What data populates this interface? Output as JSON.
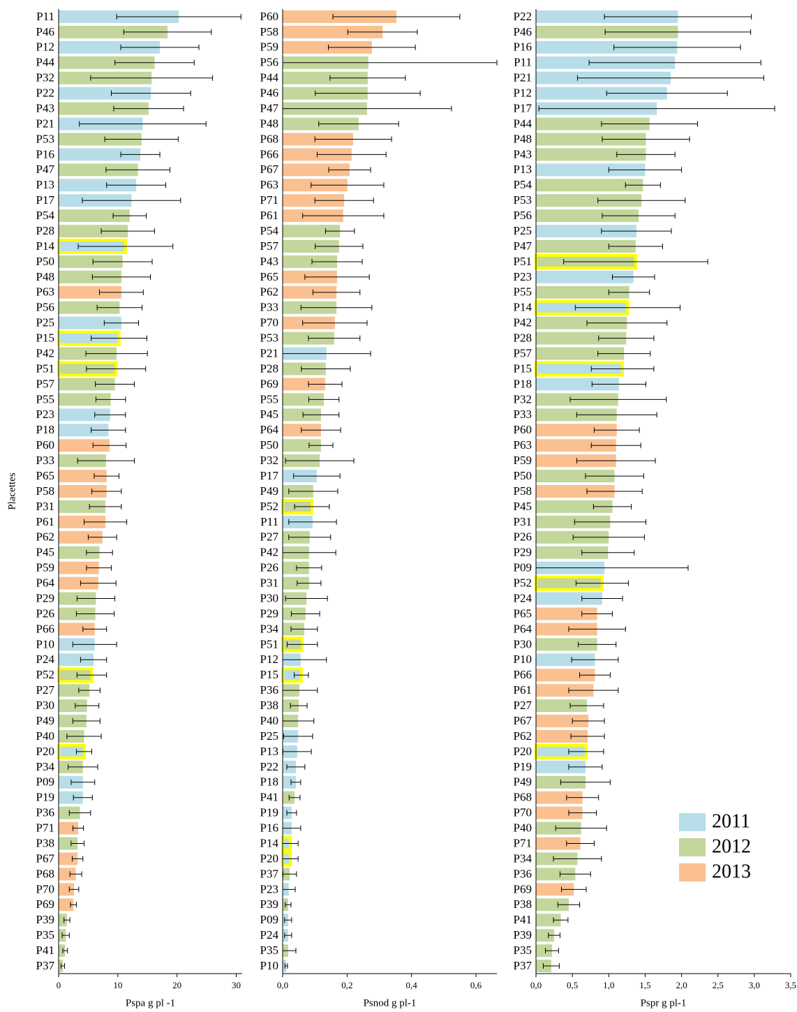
{
  "legend": {
    "position": "lower right",
    "series": [
      {
        "name": "2011",
        "color": "#b7dde8"
      },
      {
        "name": "2012",
        "color": "#c3d69b"
      },
      {
        "name": "2013",
        "color": "#fac090"
      }
    ]
  },
  "highlight_color": "#ffff00",
  "chart_data": [
    {
      "type": "bar",
      "orientation": "horizontal",
      "ylabel": "Placettes",
      "xlabel": "Pspa g pl -1",
      "xlim": [
        0,
        31
      ],
      "xticks": [
        0,
        10,
        20,
        30
      ],
      "categories": [
        "P11",
        "P46",
        "P12",
        "P44",
        "P32",
        "P22",
        "P43",
        "P21",
        "P53",
        "P16",
        "P47",
        "P13",
        "P17",
        "P54",
        "P28",
        "P14",
        "P50",
        "P48",
        "P63",
        "P56",
        "P25",
        "P15",
        "P42",
        "P51",
        "P57",
        "P55",
        "P23",
        "P18",
        "P60",
        "P33",
        "P65",
        "P58",
        "P31",
        "P61",
        "P62",
        "P45",
        "P59",
        "P64",
        "P29",
        "P26",
        "P66",
        "P10",
        "P24",
        "P52",
        "P27",
        "P30",
        "P49",
        "P40",
        "P20",
        "P34",
        "P09",
        "P19",
        "P36",
        "P71",
        "P38",
        "P67",
        "P68",
        "P70",
        "P69",
        "P39",
        "P35",
        "P41",
        "P37"
      ],
      "values": [
        20.3,
        18.4,
        17.1,
        16.2,
        15.7,
        15.6,
        15.2,
        14.2,
        14.0,
        13.8,
        13.4,
        13.1,
        12.3,
        12.0,
        11.7,
        11.3,
        10.8,
        10.6,
        10.6,
        10.3,
        10.6,
        10.2,
        9.8,
        9.7,
        9.5,
        8.8,
        8.7,
        8.4,
        8.6,
        8.0,
        8.1,
        8.1,
        7.9,
        7.9,
        7.4,
        6.9,
        6.8,
        6.7,
        6.3,
        6.2,
        6.1,
        6.1,
        5.9,
        5.6,
        5.2,
        4.8,
        4.7,
        4.3,
        4.3,
        4.1,
        4.1,
        4.1,
        3.6,
        3.3,
        3.2,
        3.2,
        2.9,
        2.6,
        2.5,
        1.4,
        1.2,
        1.1,
        0.7
      ],
      "errors": [
        10.5,
        7.4,
        6.6,
        6.7,
        10.3,
        6.7,
        5.9,
        10.7,
        6.2,
        3.3,
        5.4,
        5.0,
        8.3,
        2.8,
        4.5,
        8.0,
        5.0,
        4.9,
        3.7,
        3.8,
        2.9,
        4.7,
        5.2,
        5.0,
        3.3,
        2.5,
        2.6,
        2.9,
        2.8,
        4.8,
        2.1,
        2.5,
        2.7,
        3.6,
        2.4,
        2.2,
        2.1,
        3.0,
        3.2,
        3.2,
        2.0,
        3.7,
        2.2,
        2.5,
        1.8,
        2.0,
        2.3,
        2.9,
        1.3,
        2.5,
        2.0,
        1.6,
        1.8,
        0.9,
        1.1,
        0.9,
        1.0,
        0.8,
        0.5,
        0.5,
        0.6,
        0.4,
        0.3
      ],
      "years": [
        "2011",
        "2012",
        "2011",
        "2012",
        "2012",
        "2011",
        "2012",
        "2011",
        "2012",
        "2011",
        "2012",
        "2011",
        "2011",
        "2012",
        "2012",
        "2011",
        "2012",
        "2012",
        "2013",
        "2012",
        "2011",
        "2011",
        "2012",
        "2012",
        "2012",
        "2012",
        "2011",
        "2011",
        "2013",
        "2012",
        "2013",
        "2013",
        "2012",
        "2013",
        "2013",
        "2012",
        "2013",
        "2013",
        "2012",
        "2012",
        "2013",
        "2011",
        "2011",
        "2012",
        "2012",
        "2012",
        "2012",
        "2012",
        "2011",
        "2012",
        "2011",
        "2011",
        "2012",
        "2013",
        "2012",
        "2013",
        "2013",
        "2013",
        "2013",
        "2012",
        "2012",
        "2012",
        "2012"
      ],
      "highlight": [
        "P14",
        "P15",
        "P51",
        "P52",
        "P20"
      ]
    },
    {
      "type": "bar",
      "orientation": "horizontal",
      "xlabel": "Psnod g pl-1",
      "xlim": [
        0,
        0.665
      ],
      "xticks": [
        {
          "value": 0,
          "label": "0,0"
        },
        {
          "value": 0.2,
          "label": "0,2"
        },
        {
          "value": 0.4,
          "label": "0,4"
        },
        {
          "value": 0.6,
          "label": "0,6"
        }
      ],
      "categories": [
        "P60",
        "P58",
        "P59",
        "P56",
        "P44",
        "P46",
        "P47",
        "P48",
        "P68",
        "P66",
        "P67",
        "P63",
        "P71",
        "P61",
        "P54",
        "P57",
        "P43",
        "P65",
        "P62",
        "P33",
        "P70",
        "P53",
        "P21",
        "P28",
        "P69",
        "P55",
        "P45",
        "P64",
        "P50",
        "P32",
        "P17",
        "P49",
        "P52",
        "P11",
        "P27",
        "P42",
        "P26",
        "P31",
        "P30",
        "P29",
        "P34",
        "P51",
        "P12",
        "P15",
        "P36",
        "P38",
        "P40",
        "P25",
        "P13",
        "P22",
        "P18",
        "P41",
        "P19",
        "P16",
        "P14",
        "P20",
        "P37",
        "P23",
        "P39",
        "P09",
        "P24",
        "P35",
        "P10"
      ],
      "values": [
        0.353,
        0.31,
        0.277,
        0.266,
        0.264,
        0.264,
        0.262,
        0.236,
        0.219,
        0.214,
        0.208,
        0.201,
        0.191,
        0.188,
        0.178,
        0.175,
        0.169,
        0.169,
        0.167,
        0.167,
        0.162,
        0.16,
        0.136,
        0.134,
        0.132,
        0.128,
        0.119,
        0.119,
        0.119,
        0.115,
        0.106,
        0.095,
        0.091,
        0.093,
        0.084,
        0.082,
        0.082,
        0.082,
        0.074,
        0.071,
        0.067,
        0.061,
        0.056,
        0.058,
        0.052,
        0.05,
        0.048,
        0.048,
        0.045,
        0.041,
        0.041,
        0.037,
        0.028,
        0.028,
        0.024,
        0.024,
        0.022,
        0.019,
        0.017,
        0.017,
        0.017,
        0.017,
        0.011
      ],
      "errors": [
        0.197,
        0.108,
        0.135,
        0.399,
        0.117,
        0.163,
        0.262,
        0.124,
        0.119,
        0.107,
        0.065,
        0.113,
        0.091,
        0.126,
        0.045,
        0.074,
        0.078,
        0.1,
        0.073,
        0.11,
        0.1,
        0.08,
        0.137,
        0.076,
        0.052,
        0.047,
        0.056,
        0.061,
        0.037,
        0.106,
        0.072,
        0.076,
        0.054,
        0.074,
        0.065,
        0.083,
        0.039,
        0.037,
        0.065,
        0.044,
        0.041,
        0.047,
        0.08,
        0.022,
        0.056,
        0.026,
        0.049,
        0.045,
        0.044,
        0.028,
        0.015,
        0.017,
        0.015,
        0.028,
        0.024,
        0.024,
        0.021,
        0.02,
        0.009,
        0.011,
        0.011,
        0.024,
        0.004
      ],
      "years": [
        "2013",
        "2013",
        "2013",
        "2012",
        "2012",
        "2012",
        "2012",
        "2012",
        "2013",
        "2013",
        "2013",
        "2013",
        "2013",
        "2013",
        "2012",
        "2012",
        "2012",
        "2013",
        "2013",
        "2012",
        "2013",
        "2012",
        "2011",
        "2012",
        "2013",
        "2012",
        "2012",
        "2013",
        "2012",
        "2012",
        "2011",
        "2012",
        "2012",
        "2011",
        "2012",
        "2012",
        "2012",
        "2012",
        "2012",
        "2012",
        "2012",
        "2012",
        "2011",
        "2011",
        "2012",
        "2012",
        "2012",
        "2011",
        "2011",
        "2011",
        "2011",
        "2012",
        "2011",
        "2011",
        "2011",
        "2011",
        "2012",
        "2011",
        "2012",
        "2011",
        "2011",
        "2012",
        "2011"
      ],
      "highlight": [
        "P52",
        "P51",
        "P15",
        "P14",
        "P20"
      ]
    },
    {
      "type": "bar",
      "orientation": "horizontal",
      "xlabel": "Pspr g pl-1",
      "xlim": [
        0,
        3.5
      ],
      "xticks": [
        {
          "value": 0,
          "label": "0,0"
        },
        {
          "value": 0.5,
          "label": "0,5"
        },
        {
          "value": 1,
          "label": "1,0"
        },
        {
          "value": 1.5,
          "label": "1,5"
        },
        {
          "value": 2,
          "label": "2,0"
        },
        {
          "value": 2.5,
          "label": "2,5"
        },
        {
          "value": 3,
          "label": "3,0"
        },
        {
          "value": 3.5,
          "label": "3,5"
        }
      ],
      "categories": [
        "P22",
        "P46",
        "P16",
        "P11",
        "P21",
        "P12",
        "P17",
        "P44",
        "P48",
        "P43",
        "P13",
        "P54",
        "P53",
        "P56",
        "P25",
        "P47",
        "P51",
        "P23",
        "P55",
        "P14",
        "P42",
        "P28",
        "P57",
        "P15",
        "P18",
        "P32",
        "P33",
        "P60",
        "P63",
        "P59",
        "P50",
        "P58",
        "P45",
        "P31",
        "P26",
        "P29",
        "P09",
        "P52",
        "P24",
        "P65",
        "P64",
        "P30",
        "P10",
        "P66",
        "P61",
        "P27",
        "P67",
        "P62",
        "P20",
        "P19",
        "P49",
        "P68",
        "P70",
        "P40",
        "P71",
        "P34",
        "P36",
        "P69",
        "P38",
        "P41",
        "P39",
        "P35",
        "P37"
      ],
      "values": [
        1.95,
        1.95,
        1.94,
        1.91,
        1.85,
        1.8,
        1.66,
        1.56,
        1.51,
        1.51,
        1.5,
        1.47,
        1.45,
        1.41,
        1.38,
        1.37,
        1.37,
        1.34,
        1.28,
        1.26,
        1.25,
        1.24,
        1.21,
        1.19,
        1.14,
        1.13,
        1.11,
        1.11,
        1.1,
        1.1,
        1.08,
        1.08,
        1.05,
        1.02,
        1.0,
        0.99,
        0.94,
        0.91,
        0.91,
        0.84,
        0.84,
        0.84,
        0.81,
        0.81,
        0.79,
        0.7,
        0.72,
        0.71,
        0.69,
        0.68,
        0.68,
        0.64,
        0.64,
        0.62,
        0.61,
        0.57,
        0.54,
        0.52,
        0.45,
        0.34,
        0.25,
        0.22,
        0.21
      ],
      "errors": [
        1.01,
        1.0,
        0.87,
        1.18,
        1.28,
        0.83,
        1.62,
        0.66,
        0.6,
        0.4,
        0.5,
        0.24,
        0.6,
        0.5,
        0.48,
        0.37,
        0.99,
        0.29,
        0.28,
        0.72,
        0.55,
        0.38,
        0.36,
        0.43,
        0.37,
        0.66,
        0.55,
        0.31,
        0.34,
        0.54,
        0.4,
        0.38,
        0.26,
        0.49,
        0.49,
        0.36,
        1.15,
        0.36,
        0.28,
        0.21,
        0.39,
        0.26,
        0.32,
        0.21,
        0.34,
        0.23,
        0.22,
        0.23,
        0.24,
        0.23,
        0.34,
        0.22,
        0.19,
        0.35,
        0.19,
        0.33,
        0.21,
        0.17,
        0.15,
        0.1,
        0.08,
        0.09,
        0.11
      ],
      "years": [
        "2011",
        "2012",
        "2011",
        "2011",
        "2011",
        "2011",
        "2011",
        "2012",
        "2012",
        "2012",
        "2011",
        "2012",
        "2012",
        "2012",
        "2011",
        "2012",
        "2012",
        "2011",
        "2012",
        "2011",
        "2012",
        "2012",
        "2012",
        "2011",
        "2011",
        "2012",
        "2012",
        "2013",
        "2013",
        "2013",
        "2012",
        "2013",
        "2012",
        "2012",
        "2012",
        "2012",
        "2011",
        "2012",
        "2011",
        "2013",
        "2013",
        "2012",
        "2011",
        "2013",
        "2013",
        "2012",
        "2013",
        "2013",
        "2011",
        "2011",
        "2012",
        "2013",
        "2013",
        "2012",
        "2013",
        "2012",
        "2012",
        "2013",
        "2012",
        "2012",
        "2012",
        "2012",
        "2012"
      ],
      "highlight": [
        "P51",
        "P14",
        "P15",
        "P52",
        "P20"
      ]
    }
  ]
}
